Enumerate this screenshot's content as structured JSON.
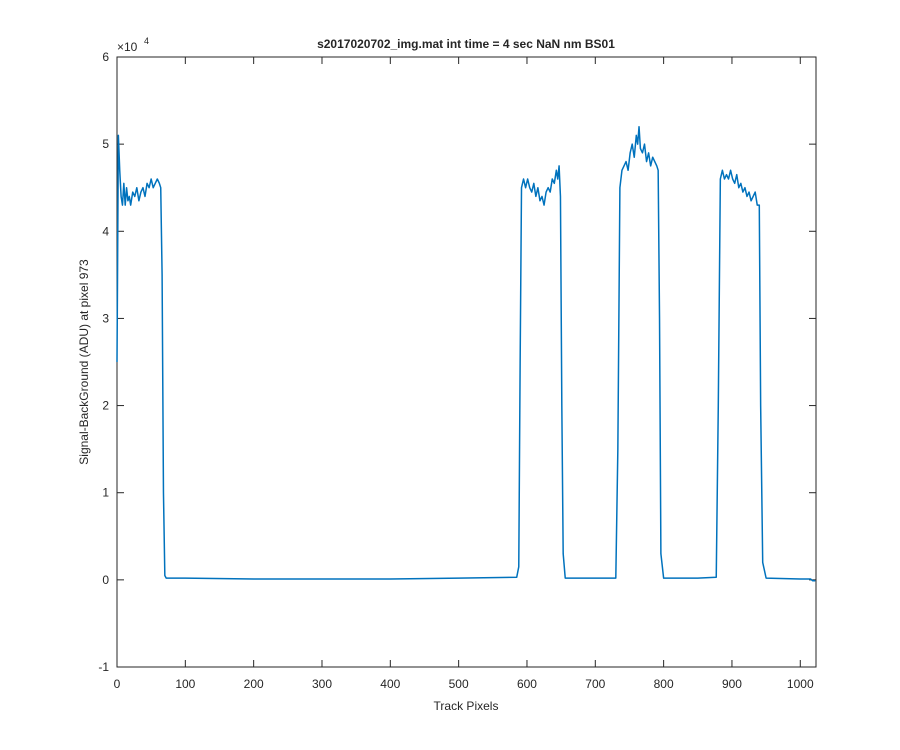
{
  "chart_data": {
    "type": "line",
    "title": "s2017020702_img.mat int time = 4 sec  NaN nm BS01",
    "x_label": "Track Pixels",
    "y_label": "Signal-BackGround (ADU) at pixel 973",
    "y_multiplier": {
      "base": "×10",
      "exponent": "4"
    },
    "xlim": [
      0,
      1023
    ],
    "ylim": [
      -1,
      6
    ],
    "xticks": [
      0,
      100,
      200,
      300,
      400,
      500,
      600,
      700,
      800,
      900,
      1000
    ],
    "yticks": [
      -1,
      0,
      1,
      2,
      3,
      4,
      5,
      6
    ],
    "series": [
      {
        "color": "#0072bd",
        "x": [
          0,
          2,
          4,
          6,
          8,
          10,
          12,
          14,
          16,
          18,
          20,
          23,
          26,
          29,
          32,
          35,
          38,
          41,
          44,
          47,
          50,
          53,
          56,
          59,
          62,
          64,
          66,
          68,
          70,
          72,
          100,
          200,
          300,
          400,
          500,
          585,
          588,
          590,
          592,
          595,
          598,
          601,
          604,
          607,
          610,
          613,
          616,
          619,
          622,
          625,
          628,
          631,
          634,
          637,
          640,
          643,
          645,
          647,
          649,
          651,
          653,
          656,
          700,
          730,
          733,
          736,
          739,
          742,
          745,
          748,
          751,
          754,
          757,
          760,
          762,
          764,
          766,
          769,
          772,
          775,
          778,
          781,
          784,
          787,
          790,
          792,
          794,
          796,
          800,
          850,
          877,
          880,
          883,
          886,
          889,
          892,
          895,
          898,
          901,
          904,
          907,
          910,
          913,
          916,
          919,
          922,
          925,
          928,
          931,
          934,
          937,
          940,
          942,
          945,
          950,
          1000,
          1015,
          1018,
          1022
        ],
        "values": [
          2.5,
          5.1,
          4.7,
          4.4,
          4.3,
          4.55,
          4.3,
          4.5,
          4.35,
          4.4,
          4.3,
          4.45,
          4.4,
          4.5,
          4.35,
          4.45,
          4.5,
          4.4,
          4.55,
          4.5,
          4.6,
          4.5,
          4.55,
          4.6,
          4.55,
          4.5,
          3.5,
          1.0,
          0.05,
          0.02,
          0.02,
          0.01,
          0.01,
          0.01,
          0.02,
          0.03,
          0.15,
          2.5,
          4.5,
          4.6,
          4.5,
          4.6,
          4.5,
          4.45,
          4.55,
          4.4,
          4.5,
          4.35,
          4.4,
          4.3,
          4.45,
          4.5,
          4.45,
          4.6,
          4.55,
          4.7,
          4.6,
          4.75,
          4.4,
          2.0,
          0.3,
          0.02,
          0.02,
          0.02,
          1.5,
          4.5,
          4.7,
          4.75,
          4.8,
          4.7,
          4.9,
          5.0,
          4.85,
          5.1,
          5.0,
          5.2,
          4.95,
          4.9,
          5.0,
          4.8,
          4.9,
          4.75,
          4.85,
          4.8,
          4.75,
          4.7,
          3.0,
          0.3,
          0.02,
          0.02,
          0.03,
          2.0,
          4.6,
          4.7,
          4.6,
          4.65,
          4.6,
          4.7,
          4.6,
          4.55,
          4.65,
          4.5,
          4.55,
          4.45,
          4.5,
          4.4,
          4.45,
          4.35,
          4.4,
          4.45,
          4.3,
          4.3,
          2.0,
          0.2,
          0.02,
          0.01,
          0.01,
          -0.01,
          -0.01
        ]
      }
    ]
  }
}
